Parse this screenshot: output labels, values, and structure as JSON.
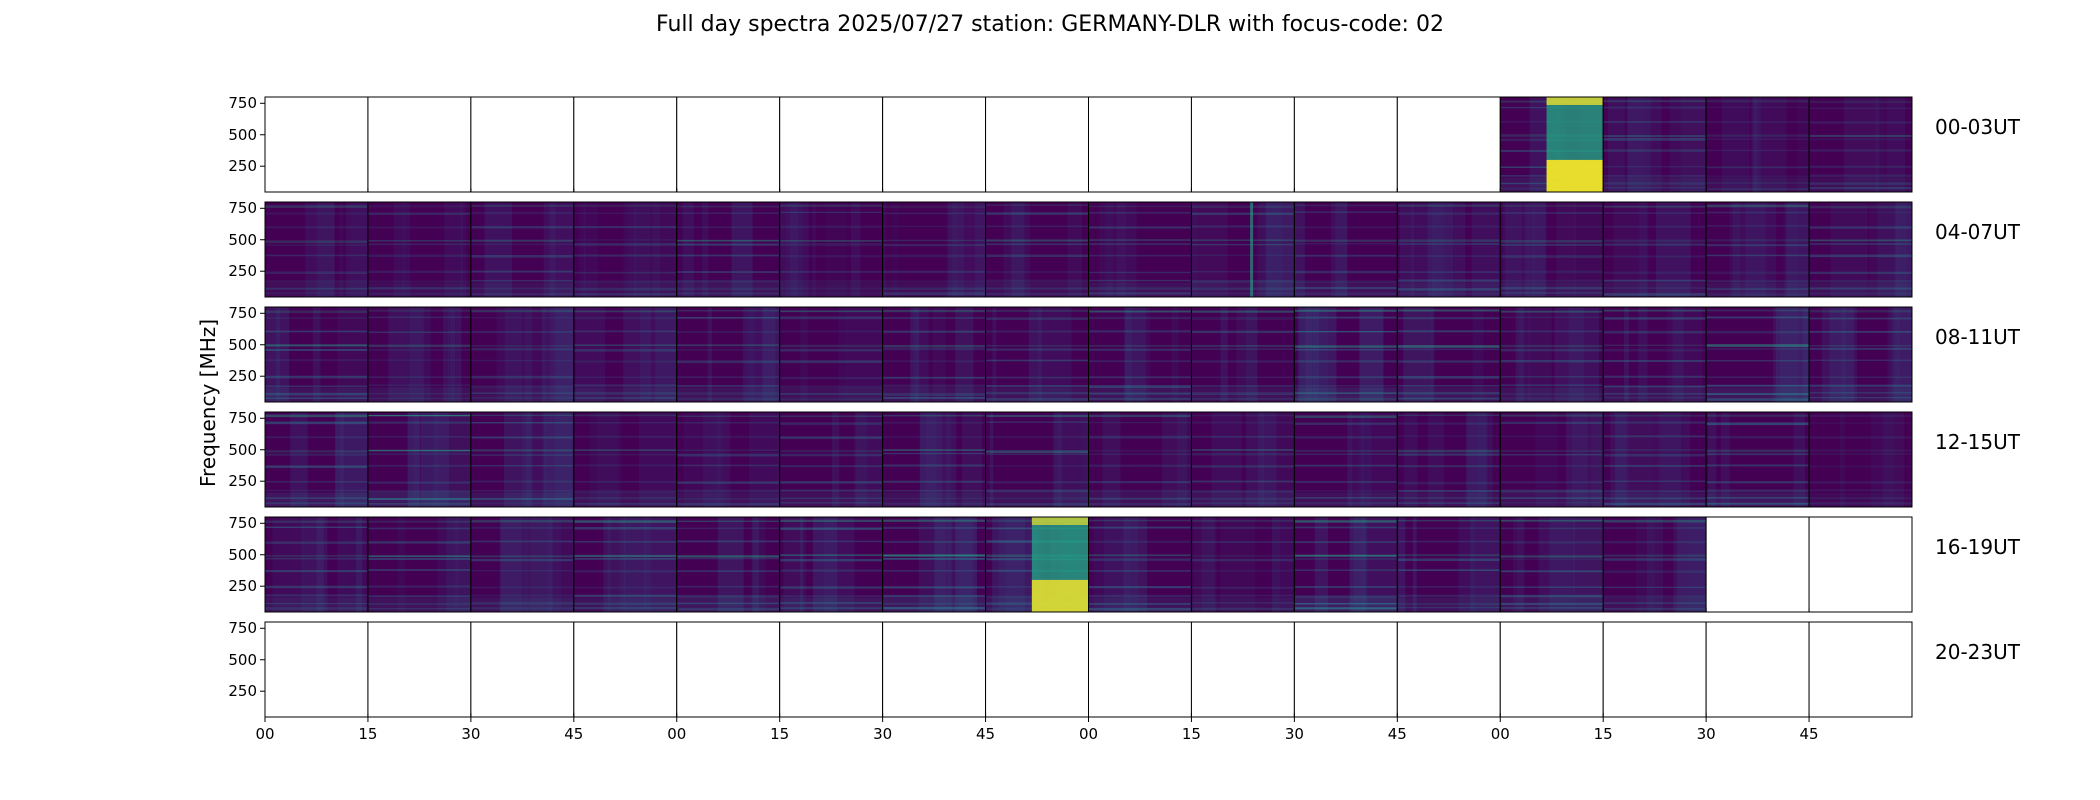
{
  "chart_data": {
    "type": "heatmap",
    "title": "Full day spectra 2025/07/27 station: GERMANY-DLR with focus-code: 02",
    "ylabel": "Frequency [MHz]",
    "xlabel": "",
    "yticks": [
      250,
      500,
      750
    ],
    "ylim": [
      45,
      800
    ],
    "xticks": [
      "00",
      "15",
      "30",
      "45",
      "00",
      "15",
      "30",
      "45",
      "00",
      "15",
      "30",
      "45",
      "00",
      "15",
      "30",
      "45"
    ],
    "panels_per_row": 16,
    "minutes_per_panel": 15,
    "colormap": "viridis",
    "colors": {
      "background": "#440154",
      "low": "#3b2c6f",
      "mid": "#2c7c8e",
      "high": "#22a884",
      "peak": "#fde725",
      "empty": "#ffffff"
    },
    "rows": [
      {
        "label": "00-03UT",
        "panels": [
          {
            "data": false
          },
          {
            "data": false
          },
          {
            "data": false
          },
          {
            "data": false
          },
          {
            "data": false
          },
          {
            "data": false
          },
          {
            "data": false
          },
          {
            "data": false
          },
          {
            "data": false
          },
          {
            "data": false
          },
          {
            "data": false
          },
          {
            "data": false
          },
          {
            "data": true,
            "intensity": 0.3,
            "burst": 0.9
          },
          {
            "data": true,
            "intensity": 0.25
          },
          {
            "data": true,
            "intensity": 0.2
          },
          {
            "data": true,
            "intensity": 0.2
          }
        ]
      },
      {
        "label": "04-07UT",
        "panels": [
          {
            "data": true,
            "intensity": 0.2
          },
          {
            "data": true,
            "intensity": 0.2
          },
          {
            "data": true,
            "intensity": 0.25
          },
          {
            "data": true,
            "intensity": 0.2
          },
          {
            "data": true,
            "intensity": 0.3
          },
          {
            "data": true,
            "intensity": 0.2
          },
          {
            "data": true,
            "intensity": 0.2
          },
          {
            "data": true,
            "intensity": 0.25
          },
          {
            "data": true,
            "intensity": 0.25
          },
          {
            "data": true,
            "intensity": 0.25,
            "spike": 0.6
          },
          {
            "data": true,
            "intensity": 0.25
          },
          {
            "data": true,
            "intensity": 0.25
          },
          {
            "data": true,
            "intensity": 0.25
          },
          {
            "data": true,
            "intensity": 0.25
          },
          {
            "data": true,
            "intensity": 0.25
          },
          {
            "data": true,
            "intensity": 0.25
          }
        ]
      },
      {
        "label": "08-11UT",
        "panels": [
          {
            "data": true,
            "intensity": 0.3
          },
          {
            "data": true,
            "intensity": 0.25
          },
          {
            "data": true,
            "intensity": 0.25
          },
          {
            "data": true,
            "intensity": 0.25
          },
          {
            "data": true,
            "intensity": 0.3
          },
          {
            "data": true,
            "intensity": 0.25
          },
          {
            "data": true,
            "intensity": 0.3
          },
          {
            "data": true,
            "intensity": 0.3
          },
          {
            "data": true,
            "intensity": 0.3
          },
          {
            "data": true,
            "intensity": 0.25
          },
          {
            "data": true,
            "intensity": 0.4
          },
          {
            "data": true,
            "intensity": 0.3
          },
          {
            "data": true,
            "intensity": 0.25
          },
          {
            "data": true,
            "intensity": 0.3
          },
          {
            "data": true,
            "intensity": 0.35
          },
          {
            "data": true,
            "intensity": 0.3
          }
        ]
      },
      {
        "label": "12-15UT",
        "panels": [
          {
            "data": true,
            "intensity": 0.35
          },
          {
            "data": true,
            "intensity": 0.4
          },
          {
            "data": true,
            "intensity": 0.3
          },
          {
            "data": true,
            "intensity": 0.25
          },
          {
            "data": true,
            "intensity": 0.25
          },
          {
            "data": true,
            "intensity": 0.25
          },
          {
            "data": true,
            "intensity": 0.25
          },
          {
            "data": true,
            "intensity": 0.25
          },
          {
            "data": true,
            "intensity": 0.25
          },
          {
            "data": true,
            "intensity": 0.25
          },
          {
            "data": true,
            "intensity": 0.25
          },
          {
            "data": true,
            "intensity": 0.25
          },
          {
            "data": true,
            "intensity": 0.25
          },
          {
            "data": true,
            "intensity": 0.25
          },
          {
            "data": true,
            "intensity": 0.35
          },
          {
            "data": true,
            "intensity": 0.15
          }
        ]
      },
      {
        "label": "16-19UT",
        "panels": [
          {
            "data": true,
            "intensity": 0.3
          },
          {
            "data": true,
            "intensity": 0.3
          },
          {
            "data": true,
            "intensity": 0.3
          },
          {
            "data": true,
            "intensity": 0.3
          },
          {
            "data": true,
            "intensity": 0.35
          },
          {
            "data": true,
            "intensity": 0.35
          },
          {
            "data": true,
            "intensity": 0.4
          },
          {
            "data": true,
            "intensity": 0.3,
            "burst": 0.8
          },
          {
            "data": true,
            "intensity": 0.3
          },
          {
            "data": true,
            "intensity": 0.2
          },
          {
            "data": true,
            "intensity": 0.45
          },
          {
            "data": true,
            "intensity": 0.3
          },
          {
            "data": true,
            "intensity": 0.3
          },
          {
            "data": true,
            "intensity": 0.25
          },
          {
            "data": false
          },
          {
            "data": false
          }
        ]
      },
      {
        "label": "20-23UT",
        "panels": [
          {
            "data": false
          },
          {
            "data": false
          },
          {
            "data": false
          },
          {
            "data": false
          },
          {
            "data": false
          },
          {
            "data": false
          },
          {
            "data": false
          },
          {
            "data": false
          },
          {
            "data": false
          },
          {
            "data": false
          },
          {
            "data": false
          },
          {
            "data": false
          },
          {
            "data": false
          },
          {
            "data": false
          },
          {
            "data": false
          },
          {
            "data": false
          }
        ]
      }
    ]
  }
}
